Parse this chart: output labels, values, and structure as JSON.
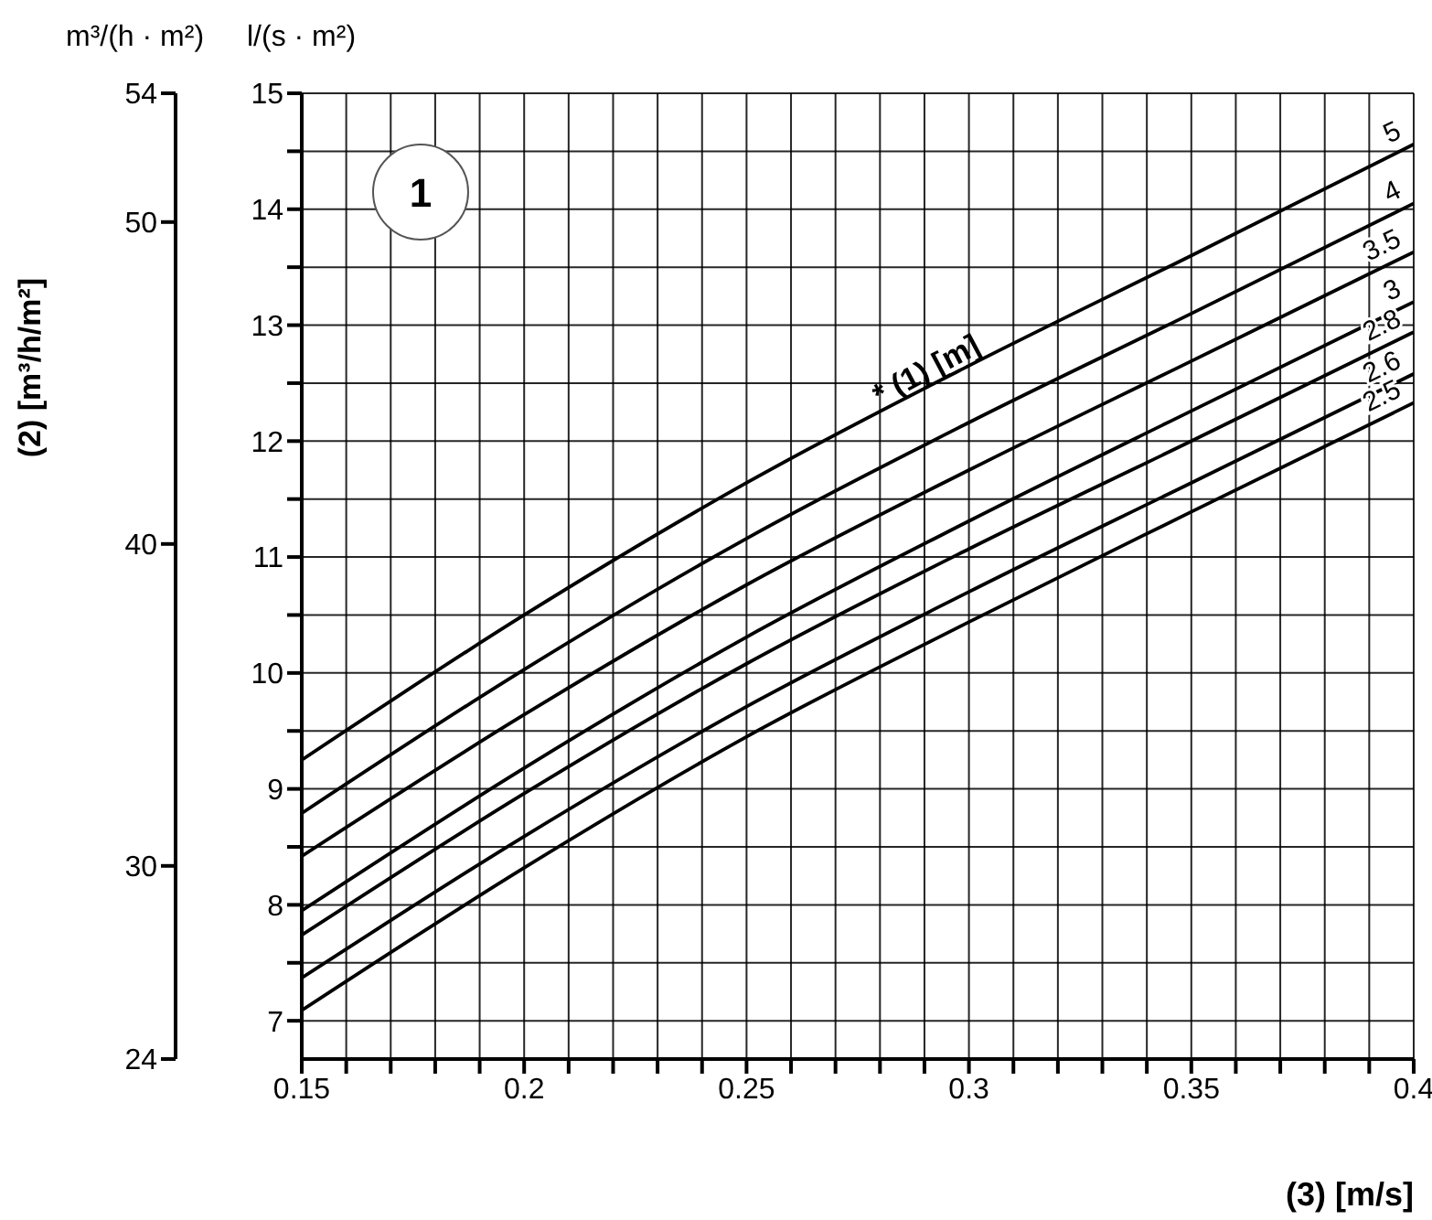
{
  "chart_data": {
    "type": "line",
    "xlabel": "(3) [m/s]",
    "ylabel": "l/(s · m²)",
    "y2label": "m³/(h · m²)",
    "annotations": [
      "1",
      {
        "text": "* (1) [m]",
        "x": 0.28,
        "y": 12.3
      },
      "(2) [m³/h/m²]"
    ],
    "x": [
      0.15,
      0.2,
      0.25,
      0.3,
      0.35,
      0.4
    ],
    "series": [
      {
        "name": "5",
        "color": "#000000",
        "values": [
          9.25,
          10.5,
          11.64,
          12.65,
          13.6,
          14.56
        ]
      },
      {
        "name": "4",
        "color": "#000000",
        "values": [
          8.79,
          10.03,
          11.16,
          12.16,
          13.1,
          14.05
        ]
      },
      {
        "name": "3.5",
        "color": "#000000",
        "values": [
          8.42,
          9.64,
          10.76,
          11.75,
          12.69,
          13.63
        ]
      },
      {
        "name": "3",
        "color": "#000000",
        "values": [
          7.95,
          9.18,
          10.31,
          11.31,
          12.26,
          13.2
        ]
      },
      {
        "name": "2.8",
        "color": "#000000",
        "values": [
          7.74,
          8.96,
          10.08,
          11.07,
          12.0,
          12.94
        ]
      },
      {
        "name": "2.6",
        "color": "#000000",
        "values": [
          7.37,
          8.59,
          9.71,
          10.7,
          11.64,
          12.58
        ]
      },
      {
        "name": "2.5",
        "color": "#000000",
        "values": [
          7.09,
          8.32,
          9.45,
          10.44,
          11.39,
          12.33
        ]
      }
    ],
    "xlim": [
      0.15,
      0.4
    ],
    "xticks": [
      0.15,
      {
        "value": 0.16,
        "label": null
      },
      {
        "value": 0.17,
        "label": null
      },
      {
        "value": 0.18,
        "label": null
      },
      {
        "value": 0.19,
        "label": null
      },
      0.2,
      {
        "value": 0.21,
        "label": null
      },
      {
        "value": 0.22,
        "label": null
      },
      {
        "value": 0.23,
        "label": null
      },
      {
        "value": 0.24,
        "label": null
      },
      0.25,
      {
        "value": 0.26,
        "label": null
      },
      {
        "value": 0.27,
        "label": null
      },
      {
        "value": 0.28,
        "label": null
      },
      {
        "value": 0.29,
        "label": null
      },
      0.3,
      {
        "value": 0.31,
        "label": null
      },
      {
        "value": 0.32,
        "label": null
      },
      {
        "value": 0.33,
        "label": null
      },
      {
        "value": 0.34,
        "label": null
      },
      0.35,
      {
        "value": 0.36,
        "label": null
      },
      {
        "value": 0.37,
        "label": null
      },
      {
        "value": 0.38,
        "label": null
      },
      {
        "value": 0.39,
        "label": null
      },
      0.4
    ],
    "ylim": [
      6.67,
      15
    ],
    "yticks": [
      7,
      {
        "value": 7.5,
        "label": null
      },
      8,
      {
        "value": 8.5,
        "label": null
      },
      9,
      {
        "value": 9.5,
        "label": null
      },
      10,
      {
        "value": 10.5,
        "label": null
      },
      11,
      {
        "value": 11.5,
        "label": null
      },
      12,
      {
        "value": 12.5,
        "label": null
      },
      13,
      {
        "value": 13.5,
        "label": null
      },
      14,
      {
        "value": 14.5,
        "label": null
      },
      15
    ],
    "y2lim": [
      24,
      54
    ],
    "y2ticks": [
      24,
      30,
      40,
      50,
      54
    ],
    "grid": true,
    "marker": "none",
    "line_style": "solid"
  }
}
